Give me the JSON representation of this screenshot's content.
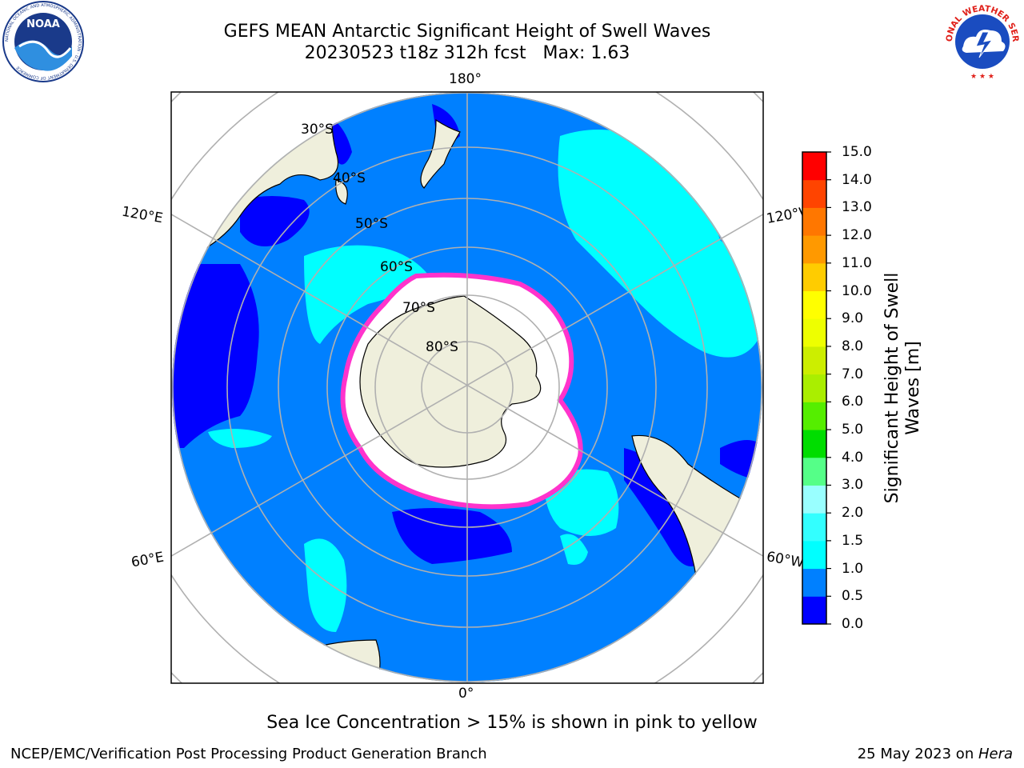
{
  "header": {
    "title_line1": "GEFS MEAN Antarctic Significant Height of Swell Waves",
    "title_line2": "20230523 t18z 312h fcst   Max: 1.63"
  },
  "logos": {
    "noaa": {
      "text": "NOAA",
      "ring_text": "NATIONAL OCEANIC AND ATMOSPHERIC ADMINISTRATION · U.S. DEPARTMENT OF COMMERCE"
    },
    "nws": {
      "ring_text": "NATIONAL WEATHER SERVICE"
    }
  },
  "map": {
    "projection": "south-polar-stereographic",
    "longitude_labels": {
      "top": "180°",
      "bottom": "0°",
      "upper_left": "120°E",
      "upper_right": "120°W",
      "lower_left": "60°E",
      "lower_right": "60°W"
    },
    "latitude_labels": [
      "30°S",
      "40°S",
      "50°S",
      "60°S",
      "70°S",
      "80°S"
    ],
    "colors": {
      "ocean_low": "#0000ff",
      "ocean_mid": "#0080ff",
      "ocean_high": "#00ffff",
      "land": "#efefdc",
      "ice": "#ffffff",
      "ice_edge": "#ff33cc",
      "grid": "#b0b0b0"
    }
  },
  "colorbar": {
    "label_line1": "Significant Height of Swell",
    "label_line2": "Waves [m]",
    "ticks": [
      "0.0",
      "0.5",
      "1.0",
      "1.5",
      "2.0",
      "3.0",
      "4.0",
      "5.0",
      "6.0",
      "7.0",
      "8.0",
      "9.0",
      "10.0",
      "11.0",
      "12.0",
      "13.0",
      "14.0",
      "15.0"
    ],
    "colors": [
      "#0000ff",
      "#0080ff",
      "#00ffff",
      "#33ffff",
      "#99ffff",
      "#55ff88",
      "#00dd00",
      "#55ee00",
      "#aaee00",
      "#ccee00",
      "#eeff00",
      "#ffff00",
      "#ffcc00",
      "#ff9900",
      "#ff7700",
      "#ff4400",
      "#ff0000"
    ]
  },
  "caption": "Sea Ice Concentration > 15% is shown in pink to yellow",
  "footer": {
    "left": "NCEP/EMC/Verification Post Processing Product Generation Branch",
    "right_date": "25 May 2023 on ",
    "right_host": "Hera"
  }
}
